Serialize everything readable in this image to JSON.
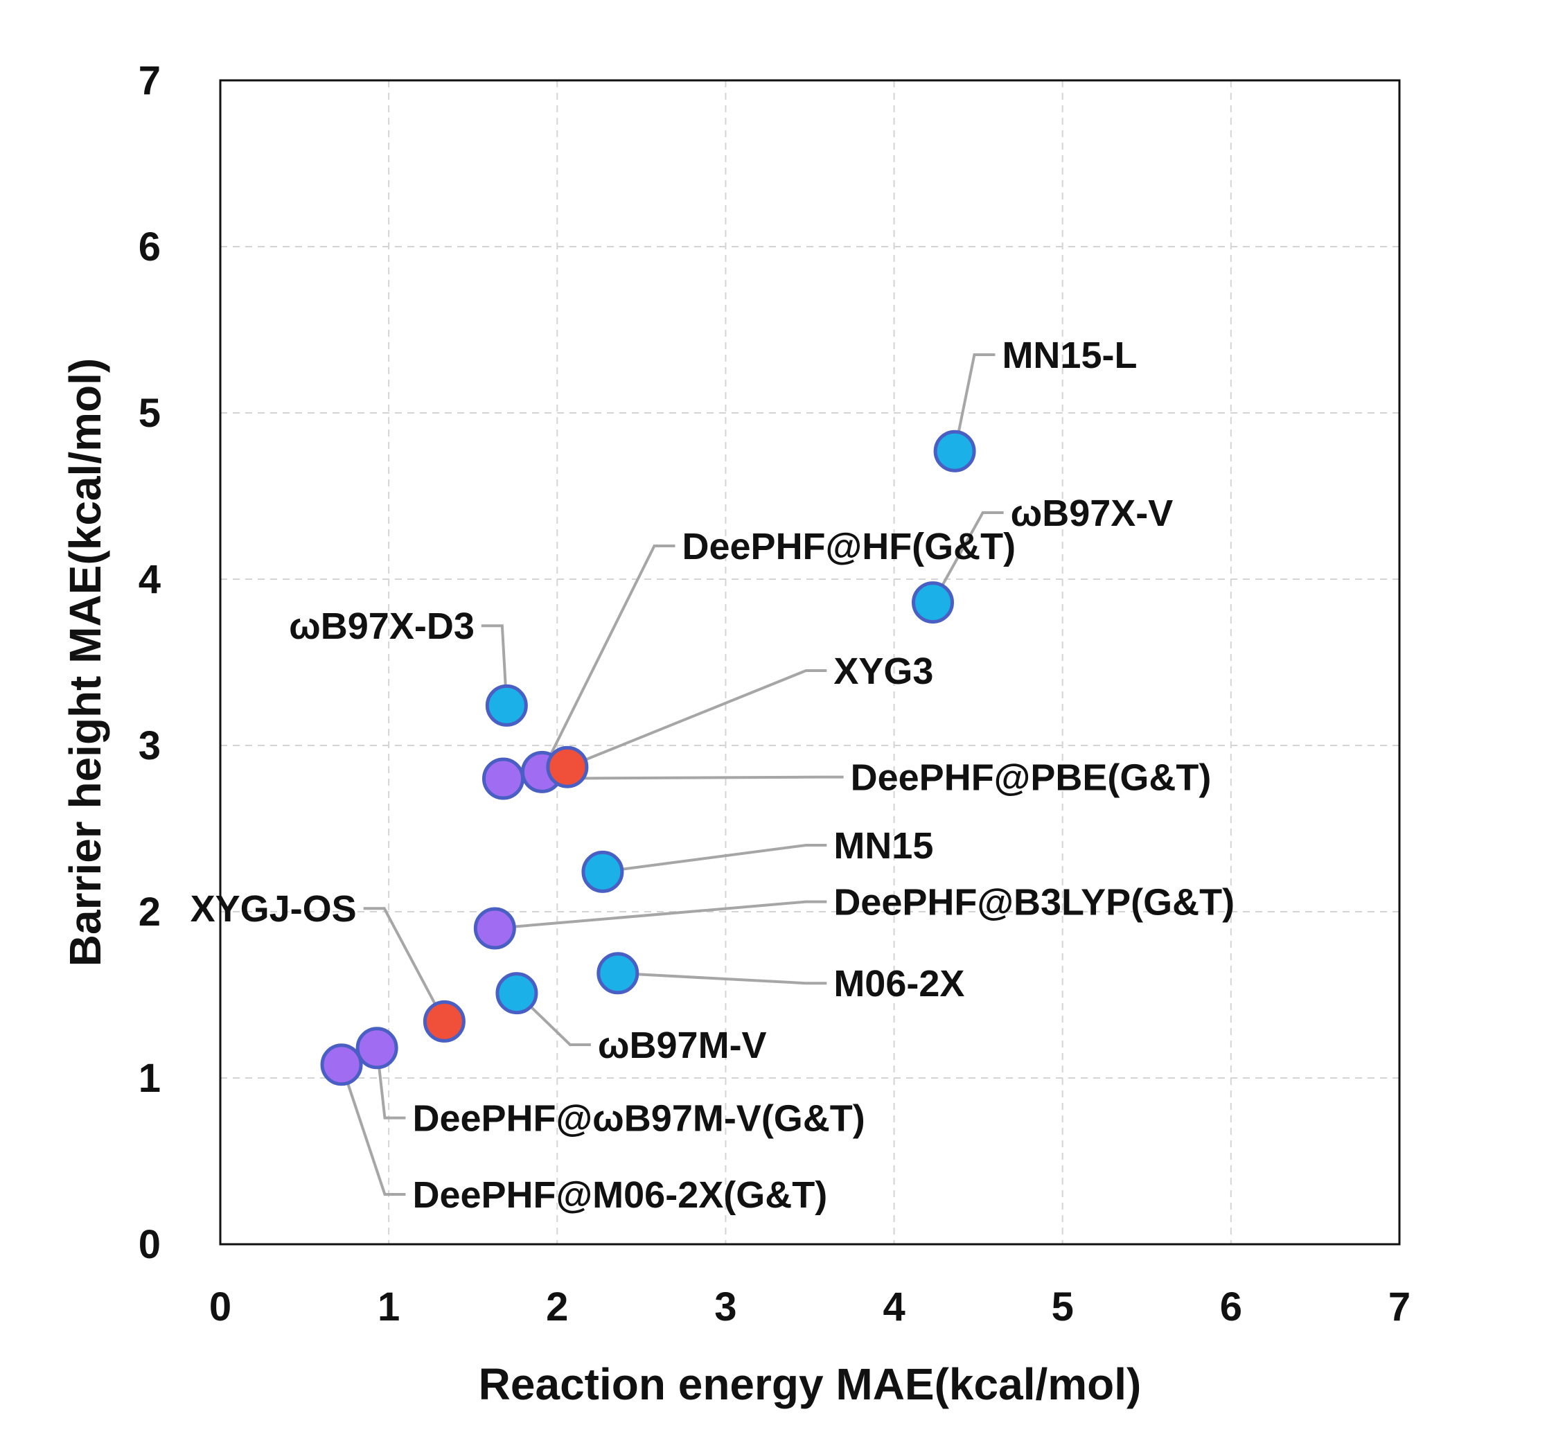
{
  "chart_data": {
    "type": "scatter",
    "title": "",
    "xlabel": "Reaction energy MAE(kcal/mol)",
    "ylabel": "Barrier height MAE(kcal/mol)",
    "xlim": [
      0,
      7
    ],
    "ylim": [
      0,
      7
    ],
    "xticks": [
      "0",
      "1",
      "2",
      "3",
      "4",
      "5",
      "6",
      "7"
    ],
    "yticks": [
      "0",
      "1",
      "2",
      "3",
      "4",
      "5",
      "6",
      "7"
    ],
    "grid": true,
    "colors": {
      "cyan": "#1bb0e8",
      "purple": "#a06cf2",
      "red": "#f0503a",
      "edge": "#4a5fc4",
      "leader": "#a6a6a6",
      "grid": "#d4d4d4"
    },
    "points": [
      {
        "label": "MN15-L",
        "x": 4.36,
        "y": 4.77,
        "color": "cyan",
        "lx": 4.6,
        "ly": 5.35
      },
      {
        "label": "ωB97X-V",
        "x": 4.23,
        "y": 3.86,
        "color": "cyan",
        "lx": 4.65,
        "ly": 4.4
      },
      {
        "label": "DeePHF@HF(G&T)",
        "x": 1.91,
        "y": 2.84,
        "color": "purple",
        "lx": 2.7,
        "ly": 4.2
      },
      {
        "label": "ωB97X-D3",
        "x": 1.7,
        "y": 3.24,
        "color": "cyan",
        "lx": 1.55,
        "ly": 3.72
      },
      {
        "label": "XYG3",
        "x": 2.06,
        "y": 2.87,
        "color": "red",
        "lx": 3.6,
        "ly": 3.45
      },
      {
        "label": "DeePHF@PBE(G&T)",
        "x": 1.68,
        "y": 2.8,
        "color": "purple",
        "lx": 3.7,
        "ly": 2.81
      },
      {
        "label": "MN15",
        "x": 2.27,
        "y": 2.24,
        "color": "cyan",
        "lx": 3.6,
        "ly": 2.4
      },
      {
        "label": "DeePHF@B3LYP(G&T)",
        "x": 1.63,
        "y": 1.9,
        "color": "purple",
        "lx": 3.6,
        "ly": 2.06
      },
      {
        "label": "M06-2X",
        "x": 2.36,
        "y": 1.63,
        "color": "cyan",
        "lx": 3.6,
        "ly": 1.57
      },
      {
        "label": "XYGJ-OS",
        "x": 1.33,
        "y": 1.34,
        "color": "red",
        "lx": 0.85,
        "ly": 2.02
      },
      {
        "label": "ωB97M-V",
        "x": 1.76,
        "y": 1.51,
        "color": "cyan",
        "lx": 2.2,
        "ly": 1.2
      },
      {
        "label": "DeePHF@ωB97M-V(G&T)",
        "x": 0.93,
        "y": 1.18,
        "color": "purple",
        "lx": 1.1,
        "ly": 0.76
      },
      {
        "label": "DeePHF@M06-2X(G&T)",
        "x": 0.72,
        "y": 1.08,
        "color": "purple",
        "lx": 1.1,
        "ly": 0.3
      }
    ]
  }
}
